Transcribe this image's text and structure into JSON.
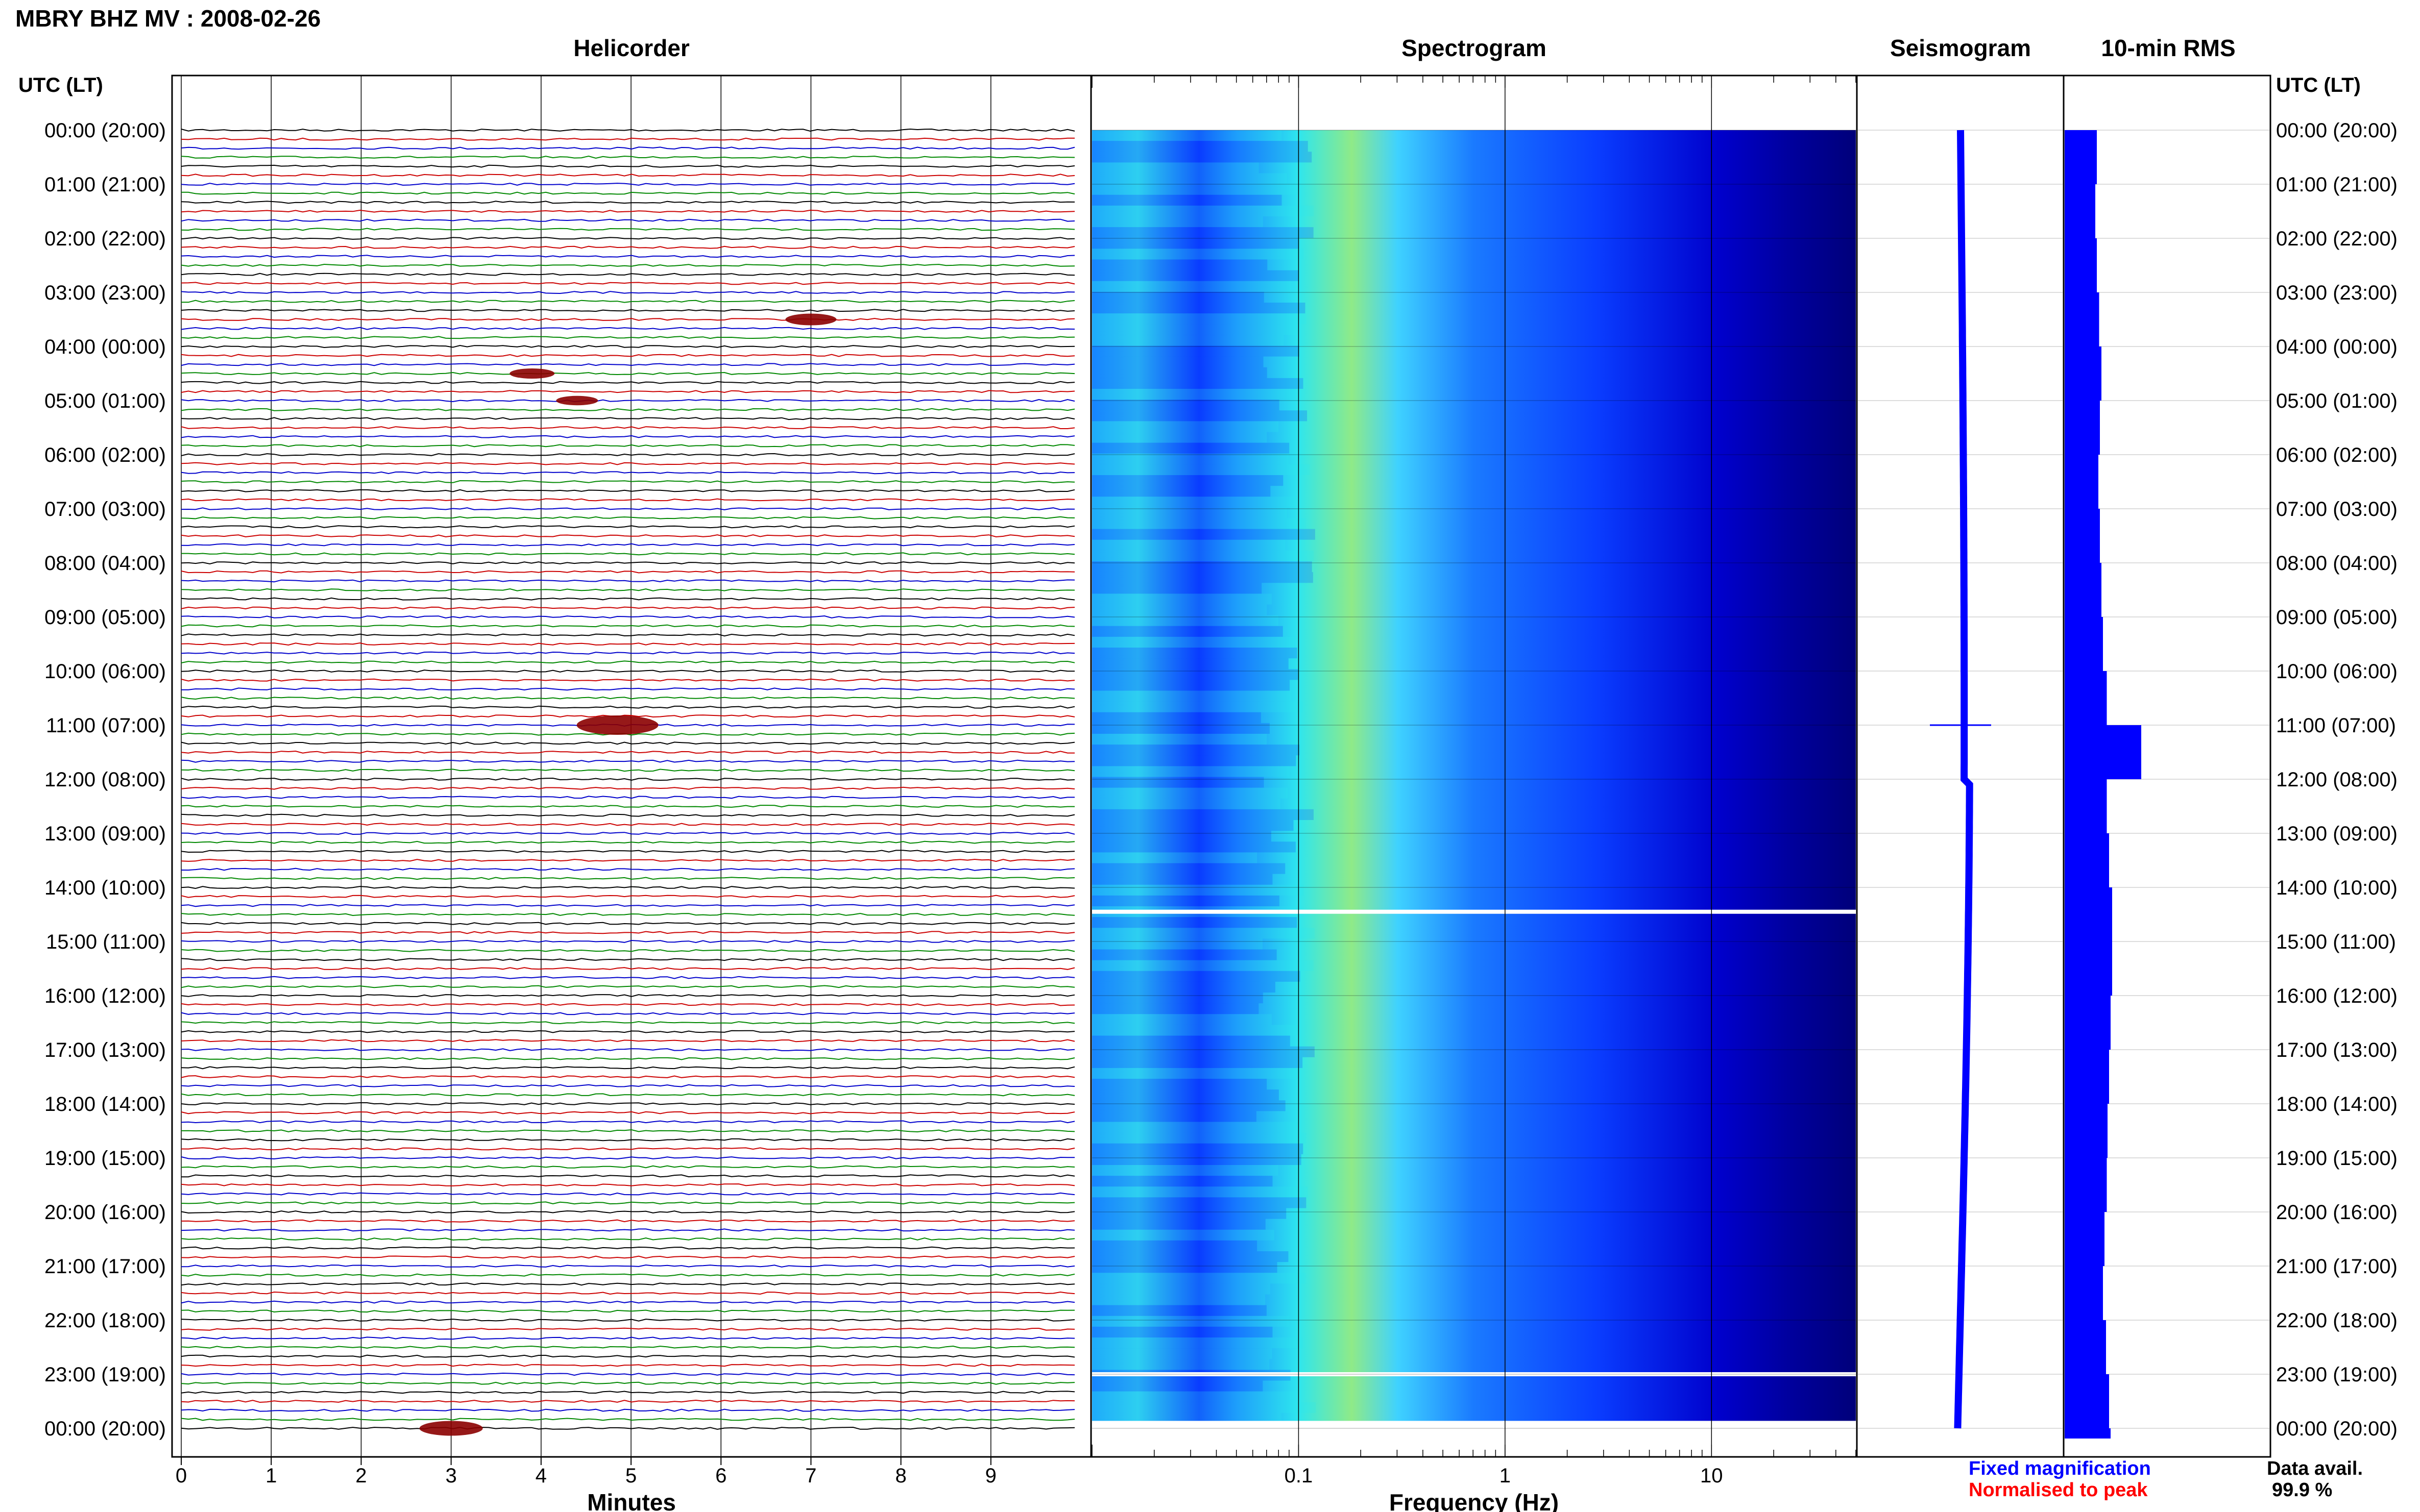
{
  "title": "MBRY BHZ MV : 2008-02-26",
  "chart_data": [
    {
      "id": "helicorder",
      "type": "line",
      "title": "Helicorder",
      "xlabel": "Minutes",
      "x_ticks": [
        0,
        1,
        2,
        3,
        4,
        5,
        6,
        7,
        8,
        9
      ],
      "xlim": [
        0,
        10
      ],
      "rows_per_hour": 6,
      "trace_colors": [
        "#000000",
        "#cc0000",
        "#0000cc",
        "#008800"
      ],
      "events": [
        {
          "hour": 3.5,
          "minute": 7.0,
          "amplitude": 0.5
        },
        {
          "hour": 4.5,
          "minute": 3.9,
          "amplitude": 0.4
        },
        {
          "hour": 5.0,
          "minute": 4.4,
          "amplitude": 0.35
        },
        {
          "hour": 11.0,
          "minute": 4.85,
          "amplitude": 1.0
        },
        {
          "hour": 24.0,
          "minute": 3.0,
          "amplitude": 0.7
        }
      ]
    },
    {
      "id": "spectrogram",
      "type": "heatmap",
      "title": "Spectrogram",
      "xlabel": "Frequency (Hz)",
      "x_scale": "log",
      "xlim": [
        0.01,
        50
      ],
      "x_ticks": [
        0.1,
        1,
        10
      ],
      "colormap": [
        "#00007a",
        "#0000cc",
        "#0a3dff",
        "#1a9aff",
        "#2ee6ee",
        "#a8f070"
      ],
      "data_gaps_hours": [
        14.45,
        23.0,
        23.9
      ]
    },
    {
      "id": "seismogram",
      "type": "line",
      "title": "Seismogram",
      "color": "#0000ff",
      "events": [
        {
          "hour": 11.0,
          "amplitude": 1.0
        }
      ]
    },
    {
      "id": "rms",
      "type": "bar",
      "title": "10-min RMS",
      "color": "#0000ff",
      "hours": [
        0,
        1,
        2,
        3,
        4,
        5,
        6,
        7,
        8,
        9,
        10,
        11,
        12,
        13,
        14,
        15,
        16,
        17,
        18,
        19,
        20,
        21,
        22,
        23,
        24
      ],
      "values": [
        0.42,
        0.4,
        0.42,
        0.45,
        0.48,
        0.46,
        0.44,
        0.46,
        0.48,
        0.5,
        0.55,
        1.0,
        0.55,
        0.58,
        0.62,
        0.62,
        0.6,
        0.58,
        0.56,
        0.55,
        0.52,
        0.5,
        0.54,
        0.58,
        0.6
      ]
    }
  ],
  "time_axis": {
    "label_left": "UTC (LT)",
    "label_right": "UTC (LT)",
    "ticks": [
      "00:00 (20:00)",
      "01:00 (21:00)",
      "02:00 (22:00)",
      "03:00 (23:00)",
      "04:00 (00:00)",
      "05:00 (01:00)",
      "06:00 (02:00)",
      "07:00 (03:00)",
      "08:00 (04:00)",
      "09:00 (05:00)",
      "10:00 (06:00)",
      "11:00 (07:00)",
      "12:00 (08:00)",
      "13:00 (09:00)",
      "14:00 (10:00)",
      "15:00 (11:00)",
      "16:00 (12:00)",
      "17:00 (13:00)",
      "18:00 (14:00)",
      "19:00 (15:00)",
      "20:00 (16:00)",
      "21:00 (17:00)",
      "22:00 (18:00)",
      "23:00 (19:00)",
      "00:00 (20:00)"
    ]
  },
  "legend": {
    "fixed": "Fixed magnification",
    "fixed_color": "#0000ff",
    "normalised": "Normalised to peak",
    "normalised_color": "#ff0000"
  },
  "data_avail": {
    "label": "Data avail.",
    "value": "99.9 %"
  }
}
